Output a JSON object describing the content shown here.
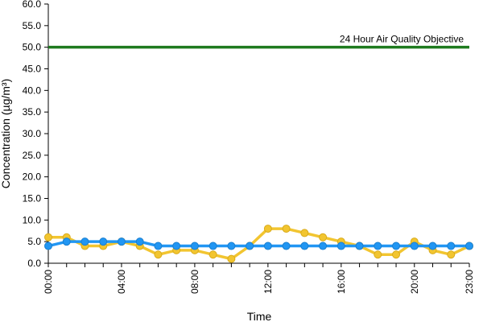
{
  "chart_data": {
    "type": "line",
    "title": "",
    "xlabel": "Time",
    "ylabel": "Concentration (µg/m³)",
    "ylim": [
      0,
      60
    ],
    "y_ticks": [
      "0.0",
      "5.0",
      "10.0",
      "15.0",
      "20.0",
      "25.0",
      "30.0",
      "35.0",
      "40.0",
      "45.0",
      "50.0",
      "55.0",
      "60.0"
    ],
    "x": [
      "00:00",
      "01:00",
      "02:00",
      "03:00",
      "04:00",
      "05:00",
      "06:00",
      "07:00",
      "08:00",
      "09:00",
      "10:00",
      "11:00",
      "12:00",
      "13:00",
      "14:00",
      "15:00",
      "16:00",
      "17:00",
      "18:00",
      "19:00",
      "20:00",
      "21:00",
      "22:00",
      "23:00"
    ],
    "x_tick_labels": [
      "00:00",
      "04:00",
      "08:00",
      "12:00",
      "16:00",
      "20:00",
      "23:00"
    ],
    "grid": false,
    "series": [
      {
        "color": "#f2c530",
        "values": [
          6,
          6,
          4,
          4,
          5,
          4,
          2,
          3,
          3,
          2,
          1,
          4,
          8,
          8,
          7,
          6,
          5,
          4,
          2,
          2,
          5,
          3,
          2,
          4
        ]
      },
      {
        "color": "#2196f3",
        "values": [
          4,
          5,
          5,
          5,
          5,
          5,
          4,
          4,
          4,
          4,
          4,
          4,
          4,
          4,
          4,
          4,
          4,
          4,
          4,
          4,
          4,
          4,
          4,
          4
        ]
      }
    ],
    "reference_line": {
      "value": 50,
      "label": "24 Hour Air Quality Objective",
      "color": "#1e7a1e"
    }
  }
}
